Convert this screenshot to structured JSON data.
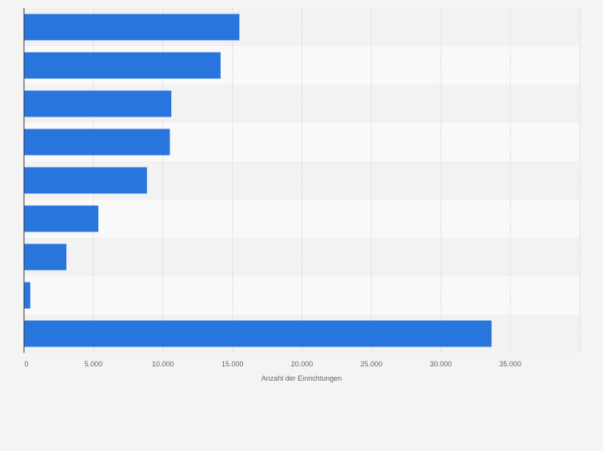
{
  "chart_data": {
    "type": "bar",
    "orientation": "horizontal",
    "categories": [
      "",
      "",
      "",
      "",
      "",
      "",
      "",
      "",
      ""
    ],
    "values": [
      15500,
      14150,
      10600,
      10500,
      8850,
      5350,
      3050,
      450,
      33650
    ],
    "xlim": [
      0,
      40000
    ],
    "x_ticks": [
      0,
      5000,
      10000,
      15000,
      20000,
      25000,
      30000,
      35000
    ],
    "x_tick_labels": [
      "0",
      "5.000",
      "10.000",
      "15.000",
      "20.000",
      "25.000",
      "30.000",
      "35.000"
    ],
    "xlabel": "Anzahl der Einrichtungen",
    "title": "",
    "grid": "vertical",
    "bar_color": "#2876dd",
    "stripe_colors": [
      "#f2f2f2",
      "#f9f9f9"
    ],
    "background": "#f4f4f4",
    "axis_color": "#333333",
    "grid_color": "#dadada",
    "text_color": "#666666"
  }
}
